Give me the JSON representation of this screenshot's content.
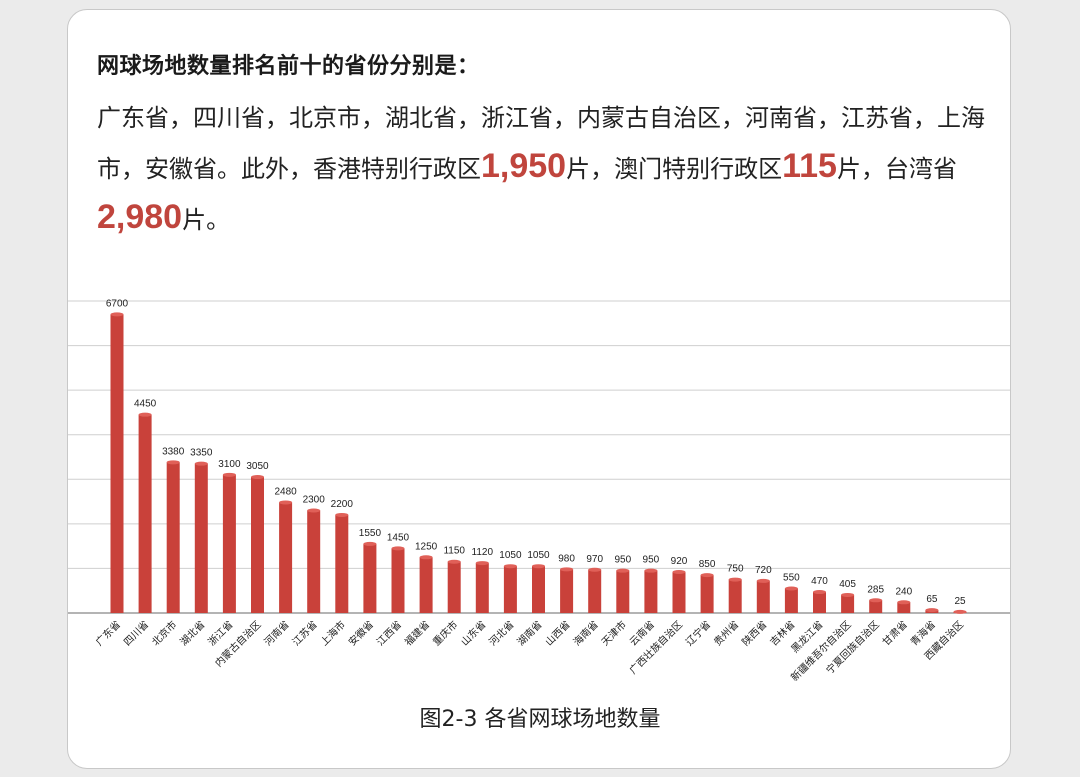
{
  "intro": {
    "heading": "网球场地数量排名前十的省份分别是：",
    "text_part1": "广东省，四川省，北京市，湖北省，浙江省，内蒙古自治区，河南省，江苏省，上海市，安徽省。此外，香港特别行政区",
    "hk_value": "1,950",
    "text_part2": "片，澳门特别行政区",
    "macau_value": "115",
    "text_part3": "片，台湾省",
    "taiwan_value": "2,980",
    "text_part4": "片。"
  },
  "caption": "图2-3 各省网球场地数量",
  "colors": {
    "bar": "#c9413a",
    "bar_top": "#e06058",
    "highlight": "#c0453d",
    "grid": "#cfcfcf",
    "axis": "#888888"
  },
  "chart_data": {
    "type": "bar",
    "categories": [
      "广东省",
      "四川省",
      "北京市",
      "湖北省",
      "浙江省",
      "内蒙古自治区",
      "河南省",
      "江苏省",
      "上海市",
      "安徽省",
      "江西省",
      "福建省",
      "重庆市",
      "山东省",
      "河北省",
      "湖南省",
      "山西省",
      "海南省",
      "天津市",
      "云南省",
      "广西壮族自治区",
      "辽宁省",
      "贵州省",
      "陕西省",
      "吉林省",
      "黑龙江省",
      "新疆维吾尔自治区",
      "宁夏回族自治区",
      "甘肃省",
      "青海省",
      "西藏自治区"
    ],
    "values": [
      6700,
      4450,
      3380,
      3350,
      3100,
      3050,
      2480,
      2300,
      2200,
      1550,
      1450,
      1250,
      1150,
      1120,
      1050,
      1050,
      980,
      970,
      950,
      950,
      920,
      850,
      750,
      720,
      550,
      470,
      405,
      285,
      240,
      65,
      25
    ],
    "ylim": [
      0,
      7000
    ],
    "grid": true,
    "data_labels": true
  }
}
